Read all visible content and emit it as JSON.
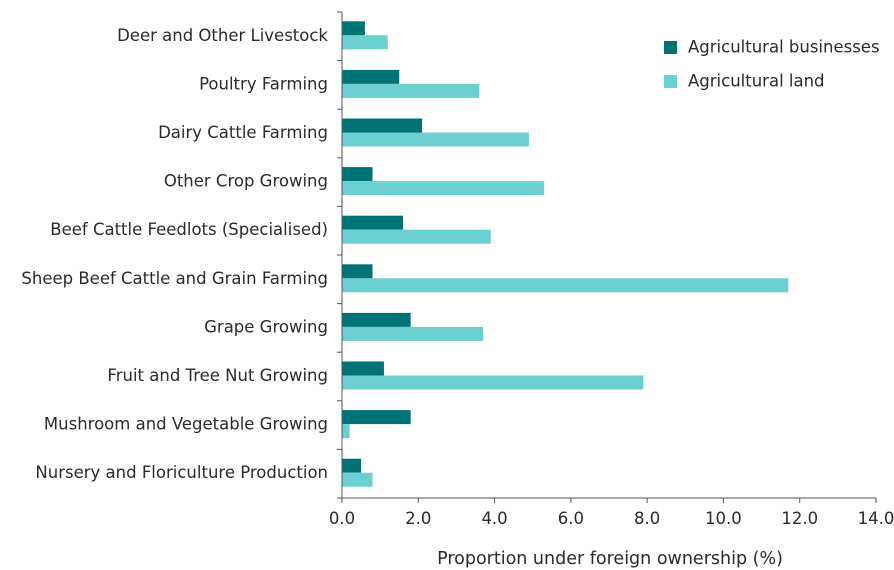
{
  "chart_data": {
    "type": "bar",
    "orientation": "horizontal",
    "categories": [
      "Deer and Other Livestock",
      "Poultry Farming",
      "Dairy Cattle Farming",
      "Other Crop Growing",
      "Beef Cattle Feedlots (Specialised)",
      "Sheep Beef Cattle and Grain Farming",
      "Grape Growing",
      "Fruit and Tree Nut Growing",
      "Mushroom and Vegetable Growing",
      "Nursery and Floriculture Production"
    ],
    "series": [
      {
        "name": "Agricultural businesses",
        "color": "#007377",
        "values": [
          0.6,
          1.5,
          2.1,
          0.8,
          1.6,
          0.8,
          1.8,
          1.1,
          1.8,
          0.5
        ]
      },
      {
        "name": "Agricultural land",
        "color": "#6ccfd2",
        "values": [
          1.2,
          3.6,
          4.9,
          5.3,
          3.9,
          11.7,
          3.7,
          7.9,
          0.2,
          0.8
        ]
      }
    ],
    "xlabel": "Proportion under foreign ownership (%)",
    "xlim": [
      0,
      14
    ],
    "xticks": [
      "0.0",
      "2.0",
      "4.0",
      "6.0",
      "8.0",
      "10.0",
      "12.0",
      "14.0"
    ],
    "grid": false,
    "legend_position": "top-right"
  }
}
